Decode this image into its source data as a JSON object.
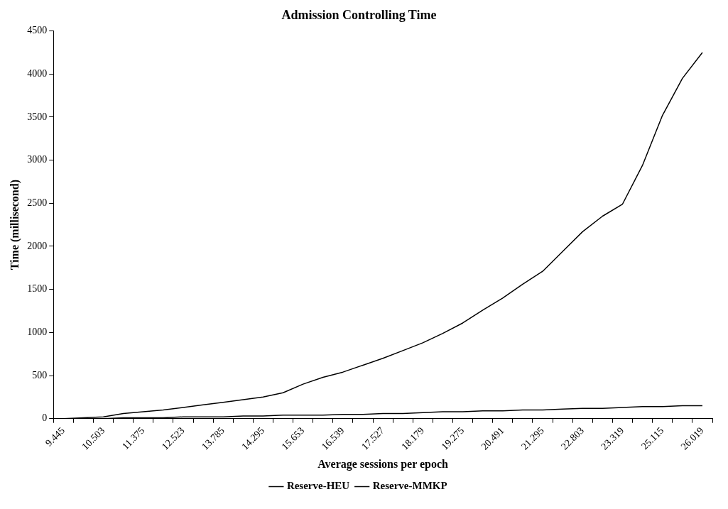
{
  "chart_data": {
    "type": "line",
    "title": "Admission Controlling Time",
    "xlabel": "Average sessions per epoch",
    "ylabel": "Time (millisecond)",
    "categories": [
      "9.445",
      null,
      "10.503",
      null,
      "11.375",
      null,
      "12.523",
      null,
      "13.785",
      null,
      "14.295",
      null,
      "15.653",
      null,
      "16.539",
      null,
      "17.527",
      null,
      "18.179",
      null,
      "19.275",
      null,
      "20.491",
      null,
      "21.295",
      null,
      "22.803",
      null,
      "23.319",
      null,
      "25.115",
      null,
      "26.019"
    ],
    "series": [
      {
        "name": "Reserve-HEU",
        "color": "#000000",
        "values": [
          0,
          0,
          0,
          10,
          10,
          10,
          20,
          20,
          20,
          30,
          30,
          40,
          40,
          40,
          50,
          50,
          60,
          60,
          70,
          80,
          80,
          90,
          90,
          100,
          100,
          110,
          120,
          120,
          130,
          140,
          140,
          150,
          150
        ]
      },
      {
        "name": "Reserve-MMKP",
        "color": "#000000",
        "values": [
          0,
          10,
          20,
          60,
          80,
          100,
          130,
          160,
          190,
          220,
          250,
          300,
          400,
          480,
          540,
          620,
          700,
          790,
          880,
          990,
          1110,
          1260,
          1400,
          1560,
          1710,
          1940,
          2170,
          2350,
          2490,
          2940,
          3520,
          3950,
          4250
        ]
      }
    ],
    "ylim": [
      0,
      4500
    ],
    "yticks": [
      0,
      500,
      1000,
      1500,
      2000,
      2500,
      3000,
      3500,
      4000,
      4500
    ],
    "grid": false,
    "legend": "bottom",
    "marker": "none",
    "line_style": "solid"
  }
}
